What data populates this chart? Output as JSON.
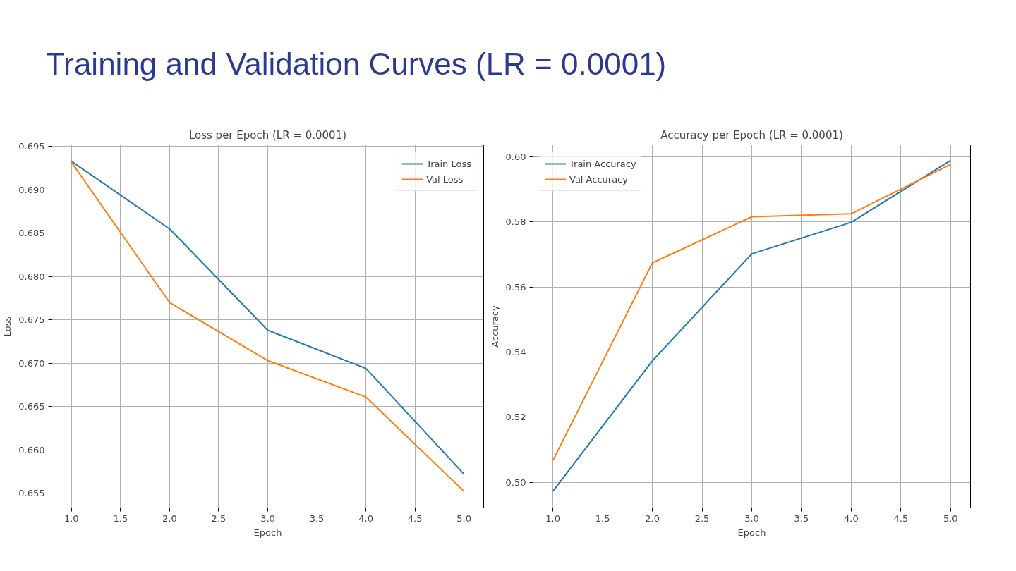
{
  "chart_data": [
    {
      "type": "line",
      "title": "Loss per Epoch (LR = 0.0001)",
      "xlabel": "Epoch",
      "ylabel": "Loss",
      "annotations": [
        "Training and Validation Curves (LR = 0.0001)"
      ],
      "x": [
        1,
        2,
        3,
        4,
        5
      ],
      "series": [
        {
          "name": "Train Loss",
          "color": "#1f77b4",
          "values": [
            0.6933,
            0.6855,
            0.6738,
            0.6694,
            0.6572
          ]
        },
        {
          "name": "Val Loss",
          "color": "#ff7f0e",
          "values": [
            0.6932,
            0.677,
            0.6703,
            0.6661,
            0.6552
          ]
        }
      ],
      "xlim": [
        0.8,
        5.2
      ],
      "ylim": [
        0.6533,
        0.6952
      ],
      "xticks": [
        {
          "value": 1,
          "label": "1.0"
        },
        {
          "value": 1.5,
          "label": "1.5"
        },
        {
          "value": 2,
          "label": "2.0"
        },
        {
          "value": 2.5,
          "label": "2.5"
        },
        {
          "value": 3,
          "label": "3.0"
        },
        {
          "value": 3.5,
          "label": "3.5"
        },
        {
          "value": 4,
          "label": "4.0"
        },
        {
          "value": 4.5,
          "label": "4.5"
        },
        {
          "value": 5,
          "label": "5.0"
        }
      ],
      "yticks": [
        {
          "value": 0.655,
          "label": "0.655"
        },
        {
          "value": 0.66,
          "label": "0.660"
        },
        {
          "value": 0.665,
          "label": "0.665"
        },
        {
          "value": 0.67,
          "label": "0.670"
        },
        {
          "value": 0.675,
          "label": "0.675"
        },
        {
          "value": 0.68,
          "label": "0.680"
        },
        {
          "value": 0.685,
          "label": "0.685"
        },
        {
          "value": 0.69,
          "label": "0.690"
        },
        {
          "value": 0.695,
          "label": "0.695"
        }
      ],
      "grid": true,
      "legend": "top right",
      "line_style": "solid"
    },
    {
      "type": "line",
      "title": "Accuracy per Epoch (LR = 0.0001)",
      "xlabel": "Epoch",
      "ylabel": "Accuracy",
      "x": [
        1,
        2,
        3,
        4,
        5
      ],
      "series": [
        {
          "name": "Train Accuracy",
          "color": "#1f77b4",
          "values": [
            0.4972,
            0.5373,
            0.5702,
            0.5799,
            0.5989
          ]
        },
        {
          "name": "Val Accuracy",
          "color": "#ff7f0e",
          "values": [
            0.5067,
            0.5674,
            0.5816,
            0.5825,
            0.5977
          ]
        }
      ],
      "xlim": [
        0.8,
        5.2
      ],
      "ylim": [
        0.4921,
        0.6037
      ],
      "xticks": [
        {
          "value": 1,
          "label": "1.0"
        },
        {
          "value": 1.5,
          "label": "1.5"
        },
        {
          "value": 2,
          "label": "2.0"
        },
        {
          "value": 2.5,
          "label": "2.5"
        },
        {
          "value": 3,
          "label": "3.0"
        },
        {
          "value": 3.5,
          "label": "3.5"
        },
        {
          "value": 4,
          "label": "4.0"
        },
        {
          "value": 4.5,
          "label": "4.5"
        },
        {
          "value": 5,
          "label": "5.0"
        }
      ],
      "yticks": [
        {
          "value": 0.5,
          "label": "0.50"
        },
        {
          "value": 0.52,
          "label": "0.52"
        },
        {
          "value": 0.54,
          "label": "0.54"
        },
        {
          "value": 0.56,
          "label": "0.56"
        },
        {
          "value": 0.58,
          "label": "0.58"
        },
        {
          "value": 0.6,
          "label": "0.60"
        }
      ],
      "grid": true,
      "legend": "top left",
      "line_style": "solid"
    }
  ]
}
